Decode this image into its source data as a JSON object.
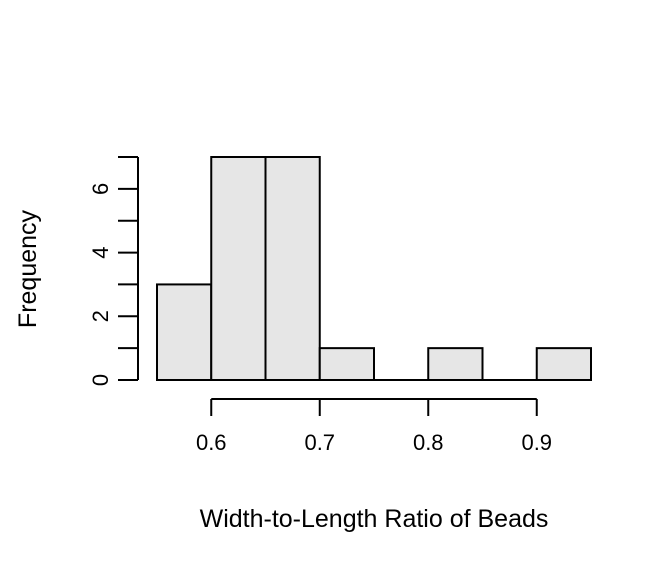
{
  "chart_data": {
    "type": "bar",
    "title": "",
    "xlabel": "Width-to-Length Ratio of Beads",
    "ylabel": "Frequency",
    "bins": [
      {
        "start": 0.55,
        "end": 0.6,
        "count": 3
      },
      {
        "start": 0.6,
        "end": 0.65,
        "count": 7
      },
      {
        "start": 0.65,
        "end": 0.7,
        "count": 7
      },
      {
        "start": 0.7,
        "end": 0.75,
        "count": 1
      },
      {
        "start": 0.75,
        "end": 0.8,
        "count": 0
      },
      {
        "start": 0.8,
        "end": 0.85,
        "count": 1
      },
      {
        "start": 0.85,
        "end": 0.9,
        "count": 0
      },
      {
        "start": 0.9,
        "end": 0.95,
        "count": 1
      }
    ],
    "xticks": [
      "0.6",
      "0.7",
      "0.8",
      "0.9"
    ],
    "yticks": [
      "0",
      "2",
      "4",
      "6"
    ],
    "xlim": [
      0.55,
      0.95
    ],
    "ylim": [
      0,
      7
    ],
    "grid": false
  }
}
